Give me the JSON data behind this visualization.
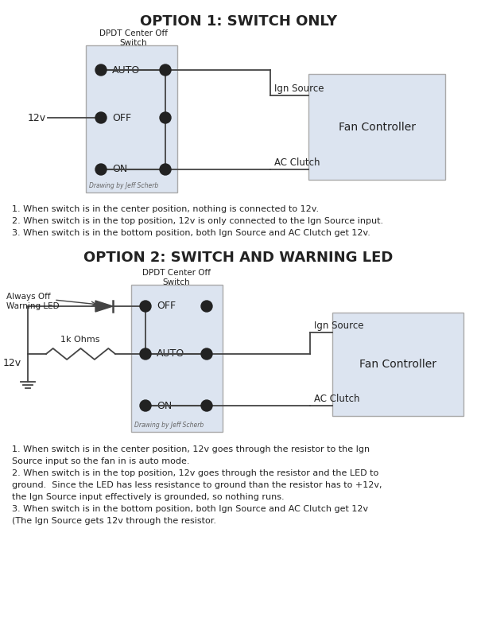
{
  "title1": "OPTION 1: SWITCH ONLY",
  "title2": "OPTION 2: SWITCH AND WARNING LED",
  "box_color": "#dce4f0",
  "box_edge": "#aaaaaa",
  "dot_color": "#222222",
  "line_color": "#444444",
  "text_color": "#222222",
  "notes1": [
    "1. When switch is in the center position, nothing is connected to 12v.",
    "2. When switch is in the top position, 12v is only connected to the Ign Source input.",
    "3. When switch is in the bottom position, both Ign Source and AC Clutch get 12v."
  ],
  "notes2_line1": "1. When switch is in the center position, 12v goes through the resistor to the Ign",
  "notes2_line2": "Source input so the fan in is auto mode.",
  "notes2_line3": "2. When switch is in the top position, 12v goes through the resistor and the LED to",
  "notes2_line4": "ground.  Since the LED has less resistance to ground than the resistor has to +12v,",
  "notes2_line5": "the Ign Source input effectively is grounded, so nothing runs.",
  "notes2_line6": "3. When switch is in the bottom position, both Ign Source and AC Clutch get 12v",
  "notes2_line7": "(The Ign Source gets 12v through the resistor."
}
